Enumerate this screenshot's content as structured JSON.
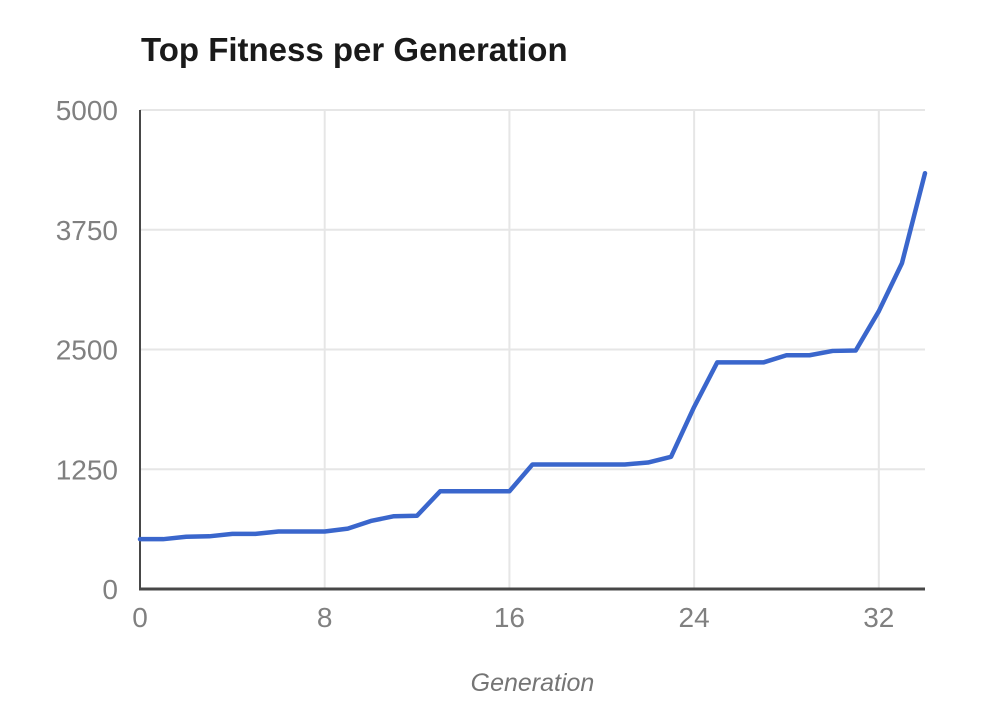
{
  "chart": {
    "title": "Top Fitness per Generation",
    "x_axis_label": "Generation"
  },
  "colors": {
    "line": "#3A66CC",
    "grid": "#E6E6E6",
    "axis": "#474747",
    "tick_label": "#808080",
    "title": "#1A1A1A",
    "axis_label": "#757575",
    "background": "#FFFFFF"
  },
  "chart_data": {
    "type": "line",
    "title": "Top Fitness per Generation",
    "xlabel": "Generation",
    "ylabel": "",
    "x": [
      0,
      1,
      2,
      3,
      4,
      5,
      6,
      7,
      8,
      9,
      10,
      11,
      12,
      13,
      14,
      15,
      16,
      17,
      18,
      19,
      20,
      21,
      22,
      23,
      24,
      25,
      26,
      27,
      28,
      29,
      30,
      31,
      32,
      33,
      34
    ],
    "series": [
      {
        "name": "Top Fitness",
        "values": [
          520,
          520,
          545,
          550,
          575,
          575,
          600,
          600,
          600,
          630,
          710,
          760,
          765,
          1020,
          1020,
          1020,
          1020,
          1300,
          1300,
          1300,
          1300,
          1300,
          1320,
          1380,
          1900,
          2365,
          2365,
          2365,
          2440,
          2440,
          2485,
          2490,
          2900,
          3400,
          4340
        ]
      }
    ],
    "xlim": [
      0,
      34
    ],
    "ylim": [
      0,
      5000
    ],
    "x_ticks": [
      0,
      8,
      16,
      24,
      32
    ],
    "y_ticks": [
      0,
      1250,
      2500,
      3750,
      5000
    ],
    "grid": true,
    "legend": false,
    "legend_position": "none"
  }
}
